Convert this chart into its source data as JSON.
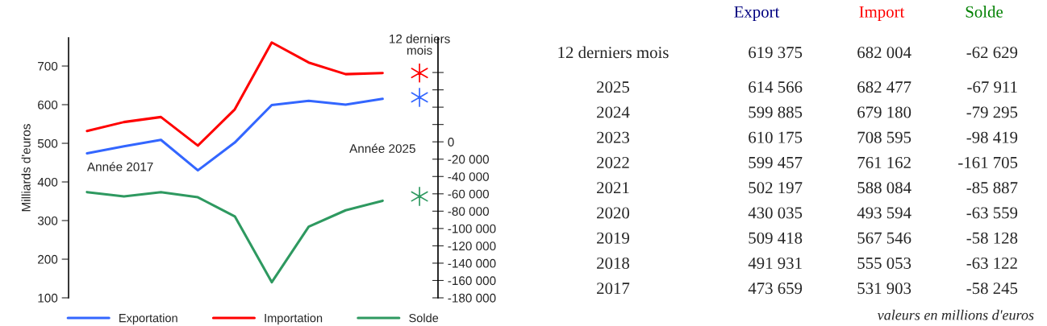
{
  "chart_data": [
    {
      "type": "line",
      "categories": [
        null,
        null,
        null,
        null,
        null,
        null,
        null,
        null,
        null,
        null
      ],
      "ylabel": "Milliards d'euros",
      "ylim": [
        100,
        773
      ],
      "yticks": [
        100,
        200,
        300,
        400,
        500,
        600,
        700
      ],
      "y2lim": [
        -180000,
        120000
      ],
      "y2ticks": [
        {
          "value": 80000,
          "label": null
        },
        {
          "value": 60000,
          "label": null
        },
        {
          "value": 40000,
          "label": null
        },
        {
          "value": 20000,
          "label": null
        },
        0,
        {
          "value": -20000,
          "label": "-20 000"
        },
        {
          "value": -40000,
          "label": "-40 000"
        },
        {
          "value": -60000,
          "label": "-60 000"
        },
        {
          "value": -80000,
          "label": "-80 000"
        },
        {
          "value": -100000,
          "label": "-100 000"
        },
        {
          "value": -120000,
          "label": "-120 000"
        },
        {
          "value": -140000,
          "label": "-140 000"
        },
        {
          "value": -160000,
          "label": "-160 000"
        },
        {
          "value": -180000,
          "label": "-180 000"
        }
      ],
      "tick_labels": "y",
      "legend": "bottom",
      "series": [
        {
          "name": "Exportation",
          "type": "line",
          "color": "#3366ff",
          "values": [
            474,
            492,
            509,
            430,
            502,
            599,
            610,
            600,
            615,
            null
          ]
        },
        {
          "name": "Importation",
          "type": "line",
          "color": "#ff0000",
          "values": [
            532,
            555,
            568,
            494,
            588,
            761,
            709,
            679,
            682,
            null
          ]
        },
        {
          "name": "Solde",
          "type": "line",
          "axis": "y2",
          "color": "#2e9960",
          "values": [
            -58000,
            -63000,
            -58000,
            -64000,
            -86000,
            -162000,
            -98000,
            -79000,
            -68000,
            null
          ]
        },
        {
          "type": "scatter",
          "marker": "cross",
          "color": "#3366ff",
          "values": [
            null,
            null,
            null,
            null,
            null,
            null,
            null,
            null,
            null,
            619
          ]
        },
        {
          "type": "scatter",
          "marker": "cross",
          "color": "#ff0000",
          "values": [
            null,
            null,
            null,
            null,
            null,
            null,
            null,
            null,
            null,
            682
          ]
        },
        {
          "type": "scatter",
          "marker": "cross",
          "axis": "y2",
          "color": "#2e9960",
          "values": [
            null,
            null,
            null,
            null,
            null,
            null,
            null,
            null,
            null,
            -63000
          ]
        }
      ],
      "annotations": [
        "Année 2017",
        "Année 2025",
        "12 derniers\nmois"
      ]
    },
    {
      "type": "heatmap",
      "categories": [
        "Export",
        "Import",
        "Solde"
      ],
      "y_categories": [
        "12 derniers mois",
        "2025",
        "2024",
        "2023",
        "2022",
        "2021",
        "2020",
        "2019",
        "2018",
        "2017"
      ],
      "cells": [
        [
          619375,
          682004,
          -62629
        ],
        [
          614566,
          682477,
          -67911
        ],
        [
          599885,
          679180,
          -79295
        ],
        [
          610175,
          708595,
          -98419
        ],
        [
          599457,
          761162,
          -161705
        ],
        [
          502197,
          588084,
          -85887
        ],
        [
          430035,
          493594,
          -63559
        ],
        [
          509418,
          567546,
          -58128
        ],
        [
          491931,
          555053,
          -63122
        ],
        [
          473659,
          531903,
          -58245
        ]
      ],
      "cell_labels": [
        [
          "619 375",
          "682 004",
          "-62 629"
        ],
        [
          "614 566",
          "682 477",
          "-67 911"
        ],
        [
          "599 885",
          "679 180",
          "-79 295"
        ],
        [
          "610 175",
          "708 595",
          "-98 419"
        ],
        [
          "599 457",
          "761 162",
          "-161 705"
        ],
        [
          "502 197",
          "588 084",
          "-85 887"
        ],
        [
          "430 035",
          "493 594",
          "-63 559"
        ],
        [
          "509 418",
          "567 546",
          "-58 128"
        ],
        [
          "491 931",
          "555 053",
          "-63 122"
        ],
        [
          "473 659",
          "531 903",
          "-58 245"
        ]
      ],
      "annotations": [
        "valeurs en millions d'euros"
      ]
    }
  ]
}
